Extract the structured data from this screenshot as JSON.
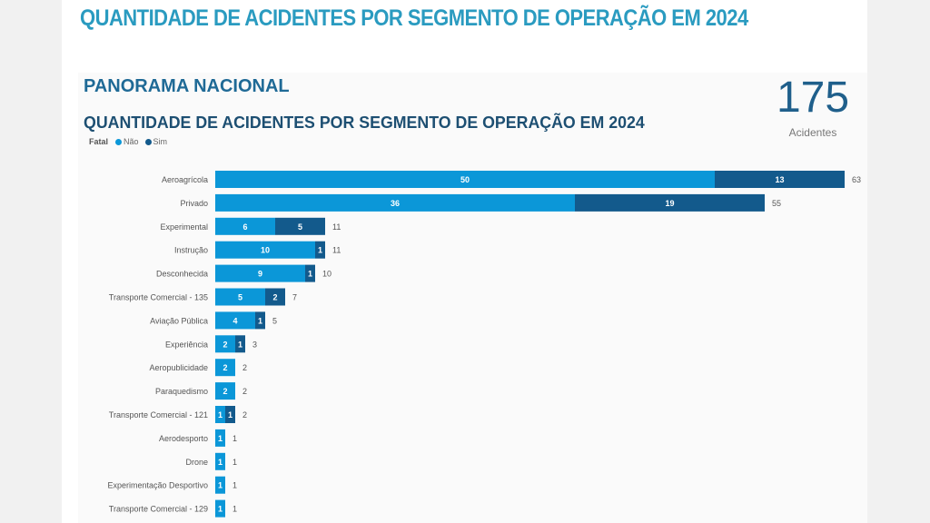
{
  "page": {
    "main_title": "QUANTIDADE DE ACIDENTES POR SEGMENTO DE OPERAÇÃO EM 2024"
  },
  "panel": {
    "title": "PANORAMA NACIONAL",
    "kpi": {
      "value": "175",
      "label": "Acidentes"
    }
  },
  "colors": {
    "nao": "#0b97d8",
    "sim": "#135a8c",
    "title": "#2a9bc0",
    "kpi": "#1f5f8b"
  },
  "chart_data": {
    "type": "bar",
    "orientation": "horizontal",
    "stacked": true,
    "title": "QUANTIDADE DE ACIDENTES POR SEGMENTO DE OPERAÇÃO EM 2024",
    "legend": {
      "title": "Fatal",
      "position": "top-left",
      "entries": [
        "Não",
        "Sim"
      ]
    },
    "xlabel": "",
    "ylabel": "",
    "xlim": [
      0,
      63
    ],
    "grid": false,
    "categories": [
      "Aeroagrícola",
      "Privado",
      "Experimental",
      "Instrução",
      "Desconhecida",
      "Transporte Comercial - 135",
      "Aviação Pública",
      "Experiência",
      "Aeropublicidade",
      "Paraquedismo",
      "Transporte Comercial - 121",
      "Aerodesporto",
      "Drone",
      "Experimentação Desportivo",
      "Transporte Comercial - 129"
    ],
    "series": [
      {
        "name": "Não",
        "values": [
          50,
          36,
          6,
          10,
          9,
          5,
          4,
          2,
          2,
          2,
          1,
          1,
          1,
          1,
          1
        ]
      },
      {
        "name": "Sim",
        "values": [
          13,
          19,
          5,
          1,
          1,
          2,
          1,
          1,
          0,
          0,
          1,
          0,
          0,
          0,
          0
        ]
      }
    ],
    "totals": [
      63,
      55,
      11,
      11,
      10,
      7,
      5,
      3,
      2,
      2,
      2,
      1,
      1,
      1,
      1
    ]
  }
}
